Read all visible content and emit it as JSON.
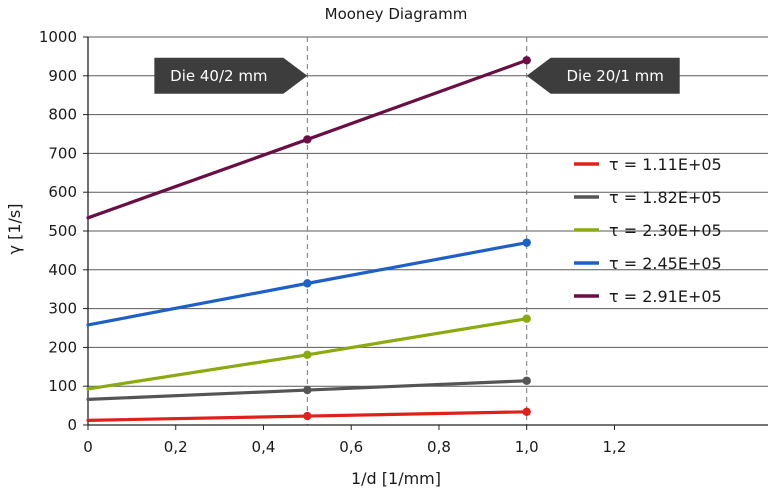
{
  "chart_data": {
    "type": "line",
    "title": "Mooney Diagramm",
    "xlabel": "1/d [1/mm]",
    "ylabel": "γ [1/s]",
    "xlim": [
      0,
      1.55
    ],
    "ylim": [
      0,
      1000
    ],
    "xticks": [
      0,
      0.2,
      0.4,
      0.6,
      0.8,
      1.0,
      1.2
    ],
    "xtick_labels": [
      "0",
      "0,2",
      "0,4",
      "0,6",
      "0,8",
      "1,0",
      "1,2"
    ],
    "yticks": [
      0,
      100,
      200,
      300,
      400,
      500,
      600,
      700,
      800,
      900,
      1000
    ],
    "ytick_labels": [
      "0",
      "100",
      "200",
      "300",
      "400",
      "500",
      "600",
      "700",
      "800",
      "900",
      "1000"
    ],
    "grid": "horizontal",
    "legend_position": "right",
    "series": [
      {
        "name": "τ = 1.11E+05",
        "color": "#e0201b",
        "x": [
          0,
          0.5,
          1.0
        ],
        "y": [
          12,
          23,
          34
        ],
        "markers": [
          false,
          true,
          true
        ]
      },
      {
        "name": "τ = 1.82E+05",
        "color": "#555555",
        "x": [
          0,
          0.5,
          1.0
        ],
        "y": [
          66,
          90,
          114
        ],
        "markers": [
          false,
          true,
          true
        ]
      },
      {
        "name": "τ = 2.30E+05",
        "color": "#8aaa10",
        "x": [
          0,
          0.5,
          1.0
        ],
        "y": [
          93,
          181,
          274
        ],
        "markers": [
          false,
          true,
          true
        ]
      },
      {
        "name": "τ = 2.45E+05",
        "color": "#1e60c8",
        "x": [
          0,
          0.5,
          1.0
        ],
        "y": [
          258,
          365,
          470
        ],
        "markers": [
          false,
          true,
          true
        ]
      },
      {
        "name": "τ = 2.91E+05",
        "color": "#6a0f43",
        "x": [
          0,
          0.5,
          1.0
        ],
        "y": [
          534,
          736,
          940
        ],
        "markers": [
          false,
          true,
          true
        ]
      }
    ],
    "vlines": [
      0.5,
      1.0
    ],
    "annotations": [
      {
        "text": "Die 40/2 mm",
        "x": 0.5,
        "y": 900,
        "arrow": "right"
      },
      {
        "text": "Die 20/1 mm",
        "x": 1.0,
        "y": 900,
        "arrow": "left"
      }
    ]
  }
}
